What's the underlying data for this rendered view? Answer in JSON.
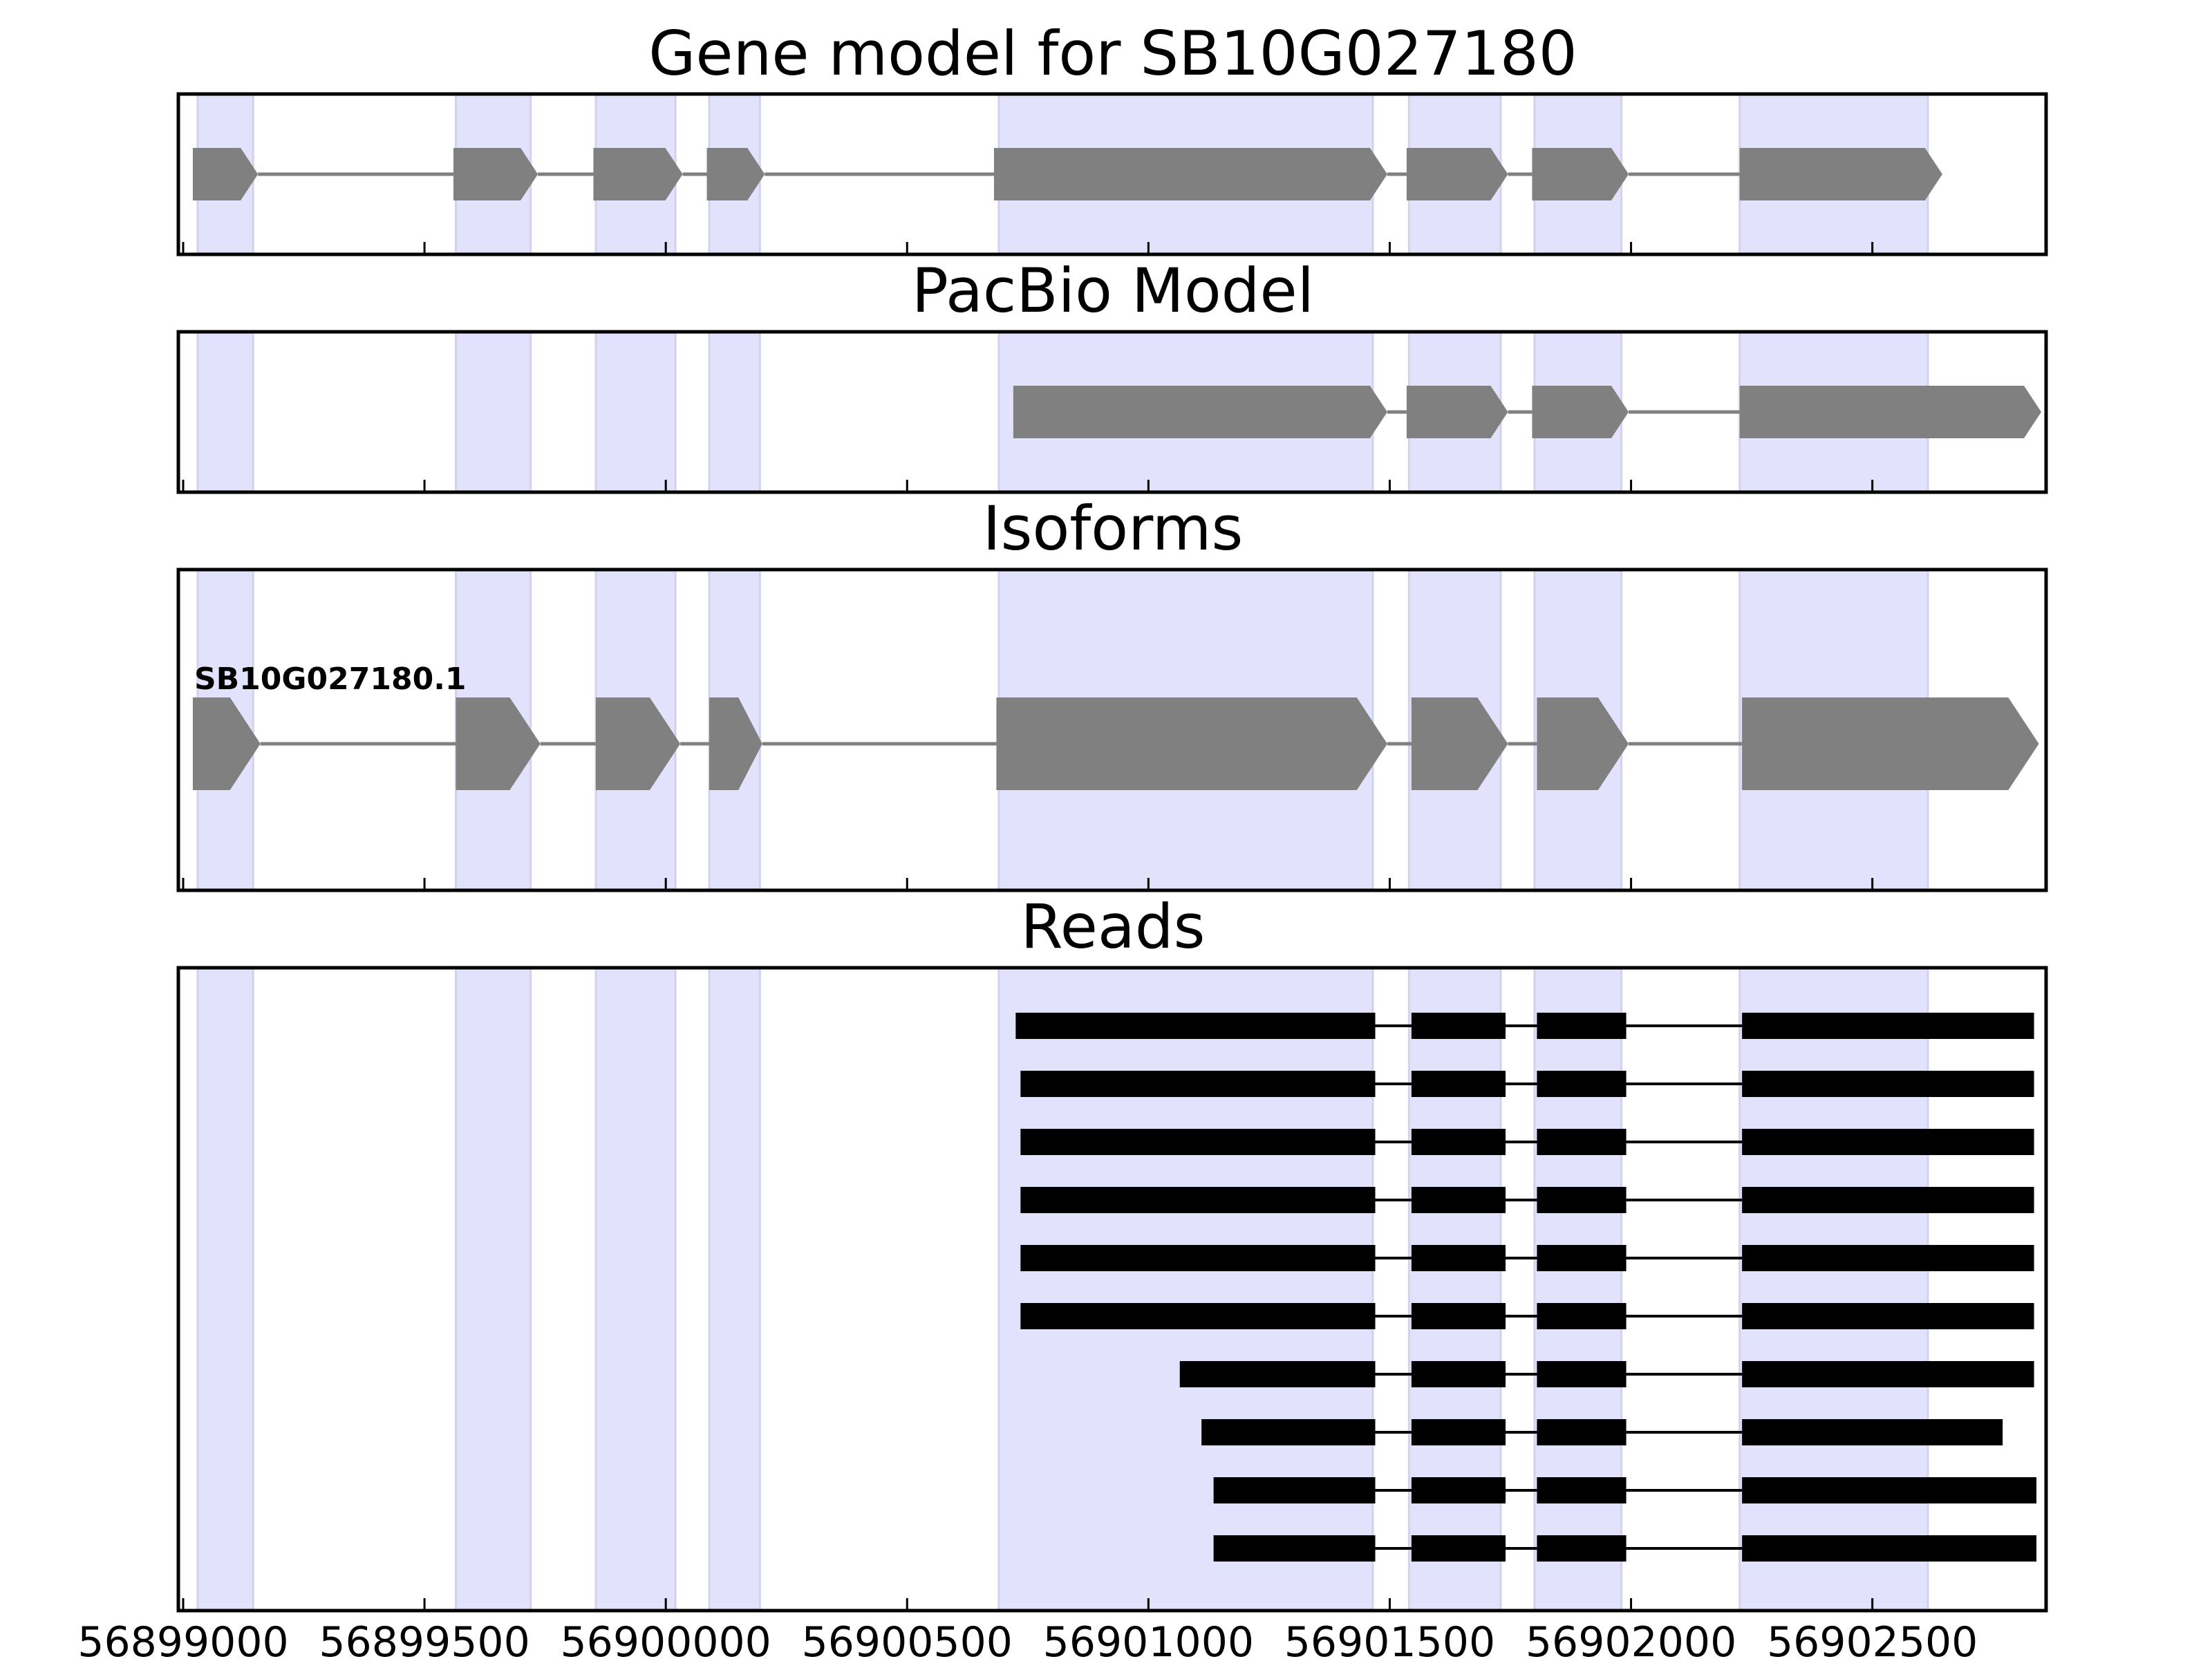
{
  "chart_data": {
    "type": "gene-structure",
    "title": "Gene model for SB10G027180",
    "x_ticks": [
      56899000,
      56899500,
      56900000,
      56900500,
      56901000,
      56901500,
      56902000,
      56902500
    ],
    "x_range": [
      56898990,
      56902860
    ],
    "highlight_color": "#e2e2fc",
    "shaded_regions": [
      [
        56899030,
        56899145
      ],
      [
        56899565,
        56899720
      ],
      [
        56899855,
        56900020
      ],
      [
        56900090,
        56900195
      ],
      [
        56900690,
        56901465
      ],
      [
        56901540,
        56901730
      ],
      [
        56901800,
        56901980
      ],
      [
        56902225,
        56902615
      ]
    ],
    "panels": [
      {
        "title": "Gene model for SB10G027180",
        "tracks": [
          {
            "label": "",
            "style": "arrow",
            "color": "#808080",
            "exons": [
              [
                56899020,
                56899155
              ],
              [
                56899560,
                56899735
              ],
              [
                56899850,
                56900035
              ],
              [
                56900085,
                56900205
              ],
              [
                56900680,
                56901495
              ],
              [
                56901535,
                56901745
              ],
              [
                56901795,
                56901995
              ],
              [
                56902225,
                56902645
              ]
            ]
          }
        ]
      },
      {
        "title": "PacBio Model",
        "tracks": [
          {
            "label": "",
            "style": "arrow",
            "color": "#808080",
            "exons": [
              [
                56900720,
                56901495
              ],
              [
                56901535,
                56901745
              ],
              [
                56901795,
                56901995
              ],
              [
                56902225,
                56902850
              ]
            ]
          }
        ]
      },
      {
        "title": "Isoforms",
        "tracks": [
          {
            "label": "SB10G027180.1",
            "style": "arrow",
            "color": "#808080",
            "exons": [
              [
                56899020,
                56899160
              ],
              [
                56899565,
                56899740
              ],
              [
                56899855,
                56900030
              ],
              [
                56900090,
                56900200
              ],
              [
                56900685,
                56901495
              ],
              [
                56901545,
                56901745
              ],
              [
                56901805,
                56901995
              ],
              [
                56902230,
                56902845
              ]
            ]
          }
        ]
      },
      {
        "title": "Reads",
        "tracks": [
          {
            "label": "",
            "style": "bar",
            "color": "#000000",
            "exons": [
              [
                56900725,
                56901470
              ],
              [
                56901545,
                56901740
              ],
              [
                56901805,
                56901990
              ],
              [
                56902230,
                56902835
              ]
            ]
          },
          {
            "label": "",
            "style": "bar",
            "color": "#000000",
            "exons": [
              [
                56900735,
                56901470
              ],
              [
                56901545,
                56901740
              ],
              [
                56901805,
                56901990
              ],
              [
                56902230,
                56902835
              ]
            ]
          },
          {
            "label": "",
            "style": "bar",
            "color": "#000000",
            "exons": [
              [
                56900735,
                56901470
              ],
              [
                56901545,
                56901740
              ],
              [
                56901805,
                56901990
              ],
              [
                56902230,
                56902835
              ]
            ]
          },
          {
            "label": "",
            "style": "bar",
            "color": "#000000",
            "exons": [
              [
                56900735,
                56901470
              ],
              [
                56901545,
                56901740
              ],
              [
                56901805,
                56901990
              ],
              [
                56902230,
                56902835
              ]
            ]
          },
          {
            "label": "",
            "style": "bar",
            "color": "#000000",
            "exons": [
              [
                56900735,
                56901470
              ],
              [
                56901545,
                56901740
              ],
              [
                56901805,
                56901990
              ],
              [
                56902230,
                56902835
              ]
            ]
          },
          {
            "label": "",
            "style": "bar",
            "color": "#000000",
            "exons": [
              [
                56900735,
                56901470
              ],
              [
                56901545,
                56901740
              ],
              [
                56901805,
                56901990
              ],
              [
                56902230,
                56902835
              ]
            ]
          },
          {
            "label": "",
            "style": "bar",
            "color": "#000000",
            "exons": [
              [
                56901065,
                56901470
              ],
              [
                56901545,
                56901740
              ],
              [
                56901805,
                56901990
              ],
              [
                56902230,
                56902835
              ]
            ]
          },
          {
            "label": "",
            "style": "bar",
            "color": "#000000",
            "exons": [
              [
                56901110,
                56901470
              ],
              [
                56901545,
                56901740
              ],
              [
                56901805,
                56901990
              ],
              [
                56902230,
                56902770
              ]
            ]
          },
          {
            "label": "",
            "style": "bar",
            "color": "#000000",
            "exons": [
              [
                56901135,
                56901470
              ],
              [
                56901545,
                56901740
              ],
              [
                56901805,
                56901990
              ],
              [
                56902230,
                56902840
              ]
            ]
          },
          {
            "label": "",
            "style": "bar",
            "color": "#000000",
            "exons": [
              [
                56901135,
                56901470
              ],
              [
                56901545,
                56901740
              ],
              [
                56901805,
                56901990
              ],
              [
                56902230,
                56902840
              ]
            ]
          }
        ]
      }
    ]
  }
}
